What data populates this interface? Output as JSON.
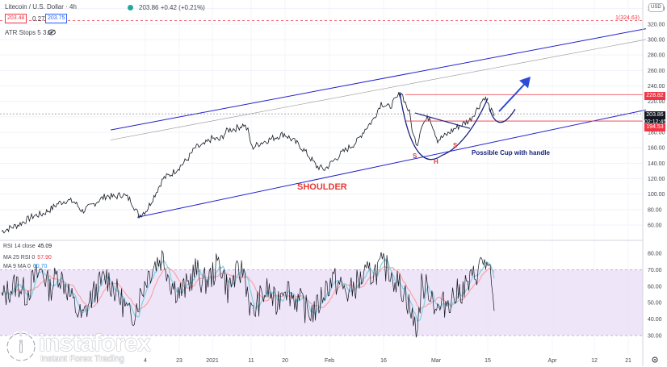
{
  "header": {
    "symbol": "Litecoin / U.S. Dollar · 4h",
    "bid": "203.48",
    "spread": "0.27",
    "ask": "203.75",
    "price_line": "203.86  +0.42 (+0.21%)",
    "indicator": "ATR Stops 5 3.5",
    "currency": "USD"
  },
  "rsi_legend": {
    "rsi_label": "RSI 14 close",
    "rsi_value": "45.09",
    "ma25_label": "MA 25 RSI 0",
    "ma25_value": "57.90",
    "ma9_label": "MA 9 MA 0",
    "ma9_value": "60.70"
  },
  "annotations": {
    "shoulder": "SHOULDER",
    "cup": "Possible Cup with handle",
    "left": "S",
    "head": "H",
    "right": "S",
    "target": "1(324.63)"
  },
  "price_boxes": {
    "upper": "228.82",
    "current": "203.86",
    "countdown": "02:12:45",
    "lower": "194.53"
  },
  "watermark": {
    "brand": "instaforex",
    "tagline": "Instant Forex Trading"
  },
  "colors": {
    "price": "#131722",
    "channel": "#2222cc",
    "red_level": "#f23645",
    "rsi_band": "#e9dcf7",
    "rsi_ma25": "#f7a6a6",
    "rsi_ma9": "#7fcfe0"
  },
  "chart_data": {
    "type": "line",
    "price_axis": [
      60,
      80,
      100,
      120,
      140,
      160,
      180,
      200,
      220,
      240,
      260,
      280,
      300,
      320,
      340
    ],
    "rsi_axis": [
      30,
      40,
      50,
      60,
      70,
      80
    ],
    "time_labels": [
      "4",
      "23",
      "2021",
      "11",
      "20",
      "Feb",
      "16",
      "Mar",
      "15",
      "Apr",
      "12",
      "21"
    ],
    "ylim": [
      50,
      340
    ],
    "rsi_ylim": [
      25,
      85
    ],
    "price_series": [
      [
        0,
        52
      ],
      [
        10,
        56
      ],
      [
        20,
        60
      ],
      [
        30,
        66
      ],
      [
        40,
        72
      ],
      [
        50,
        74
      ],
      [
        60,
        80
      ],
      [
        70,
        88
      ],
      [
        80,
        92
      ],
      [
        90,
        90
      ],
      [
        100,
        78
      ],
      [
        110,
        84
      ],
      [
        120,
        92
      ],
      [
        130,
        98
      ],
      [
        140,
        96
      ],
      [
        150,
        100
      ],
      [
        160,
        92
      ],
      [
        170,
        72
      ],
      [
        180,
        80
      ],
      [
        190,
        100
      ],
      [
        200,
        120
      ],
      [
        210,
        126
      ],
      [
        220,
        135
      ],
      [
        230,
        145
      ],
      [
        240,
        160
      ],
      [
        250,
        163
      ],
      [
        260,
        172
      ],
      [
        270,
        170
      ],
      [
        280,
        183
      ],
      [
        290,
        185
      ],
      [
        300,
        190
      ],
      [
        305,
        182
      ],
      [
        310,
        160
      ],
      [
        320,
        166
      ],
      [
        330,
        170
      ],
      [
        340,
        174
      ],
      [
        350,
        178
      ],
      [
        360,
        170
      ],
      [
        370,
        162
      ],
      [
        380,
        150
      ],
      [
        390,
        136
      ],
      [
        400,
        132
      ],
      [
        410,
        142
      ],
      [
        420,
        152
      ],
      [
        430,
        160
      ],
      [
        440,
        168
      ],
      [
        450,
        184
      ],
      [
        460,
        196
      ],
      [
        470,
        218
      ],
      [
        480,
        212
      ],
      [
        490,
        225
      ],
      [
        495,
        232
      ],
      [
        500,
        218
      ],
      [
        505,
        205
      ],
      [
        510,
        175
      ],
      [
        515,
        165
      ],
      [
        520,
        190
      ],
      [
        530,
        200
      ],
      [
        540,
        170
      ],
      [
        550,
        176
      ],
      [
        560,
        184
      ],
      [
        570,
        190
      ],
      [
        580,
        196
      ],
      [
        590,
        212
      ],
      [
        598,
        226
      ],
      [
        605,
        210
      ],
      [
        610,
        201
      ]
    ],
    "rsi_series": [
      [
        0,
        52
      ],
      [
        10,
        58
      ],
      [
        20,
        62
      ],
      [
        30,
        55
      ],
      [
        40,
        64
      ],
      [
        50,
        70
      ],
      [
        60,
        58
      ],
      [
        70,
        68
      ],
      [
        80,
        60
      ],
      [
        90,
        48
      ],
      [
        100,
        40
      ],
      [
        110,
        52
      ],
      [
        120,
        60
      ],
      [
        130,
        66
      ],
      [
        140,
        58
      ],
      [
        150,
        50
      ],
      [
        160,
        40
      ],
      [
        170,
        52
      ],
      [
        180,
        66
      ],
      [
        190,
        74
      ],
      [
        200,
        78
      ],
      [
        210,
        62
      ],
      [
        220,
        56
      ],
      [
        230,
        60
      ],
      [
        240,
        70
      ],
      [
        250,
        62
      ],
      [
        260,
        66
      ],
      [
        270,
        75
      ],
      [
        280,
        58
      ],
      [
        290,
        66
      ],
      [
        300,
        70
      ],
      [
        310,
        42
      ],
      [
        320,
        52
      ],
      [
        330,
        58
      ],
      [
        340,
        48
      ],
      [
        350,
        62
      ],
      [
        360,
        54
      ],
      [
        370,
        50
      ],
      [
        380,
        44
      ],
      [
        390,
        46
      ],
      [
        400,
        58
      ],
      [
        410,
        64
      ],
      [
        420,
        60
      ],
      [
        430,
        55
      ],
      [
        440,
        62
      ],
      [
        450,
        66
      ],
      [
        460,
        68
      ],
      [
        470,
        72
      ],
      [
        480,
        70
      ],
      [
        490,
        62
      ],
      [
        500,
        56
      ],
      [
        510,
        38
      ],
      [
        515,
        35
      ],
      [
        520,
        60
      ],
      [
        530,
        58
      ],
      [
        540,
        45
      ],
      [
        550,
        50
      ],
      [
        560,
        54
      ],
      [
        570,
        58
      ],
      [
        580,
        62
      ],
      [
        590,
        70
      ],
      [
        598,
        76
      ],
      [
        605,
        65
      ],
      [
        610,
        45
      ]
    ],
    "channel_upper": [
      [
        135,
        183
      ],
      [
        798,
        314
      ]
    ],
    "channel_lower": [
      [
        168,
        70
      ],
      [
        798,
        209
      ]
    ],
    "midline": [
      [
        135,
        170
      ],
      [
        798,
        300
      ]
    ],
    "levels": [
      228.82,
      203.86,
      194.53,
      324.63
    ]
  }
}
